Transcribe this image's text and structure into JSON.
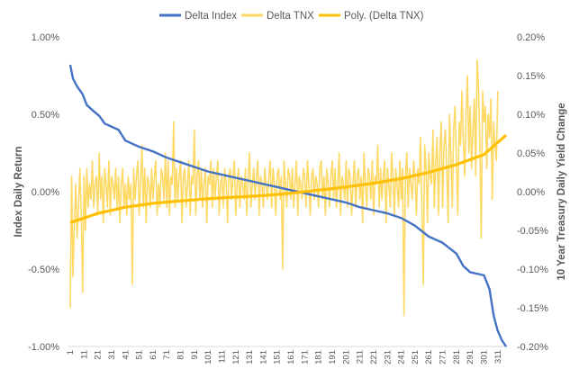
{
  "chart_data": {
    "type": "line",
    "title": "",
    "xlabel": "",
    "ylabel_left": "Index Daily Return",
    "ylabel_right": "10 Year Treasury Daily Yield Change",
    "x_range": [
      1,
      317
    ],
    "x_ticks": [
      1,
      11,
      21,
      31,
      41,
      51,
      61,
      71,
      81,
      91,
      101,
      111,
      121,
      131,
      141,
      151,
      161,
      171,
      181,
      191,
      201,
      211,
      221,
      231,
      241,
      251,
      261,
      271,
      281,
      291,
      301,
      311
    ],
    "y_left_range": [
      -0.01,
      0.01
    ],
    "y_left_ticks": [
      "1.00%",
      "0.50%",
      "0.00%",
      "-0.50%",
      "-1.00%"
    ],
    "y_right_range": [
      -0.002,
      0.002
    ],
    "y_right_ticks": [
      "0.20%",
      "0.15%",
      "0.10%",
      "0.05%",
      "0.00%",
      "-0.05%",
      "-0.10%",
      "-0.15%",
      "-0.20%"
    ],
    "legend_position": "top",
    "series": [
      {
        "name": "Delta Index",
        "axis": "left",
        "color": "#4472C4",
        "points": [
          [
            1,
            0.0082
          ],
          [
            3,
            0.0073
          ],
          [
            6,
            0.0068
          ],
          [
            10,
            0.0063
          ],
          [
            13,
            0.0056
          ],
          [
            18,
            0.0052
          ],
          [
            22,
            0.0049
          ],
          [
            26,
            0.0044
          ],
          [
            31,
            0.0042
          ],
          [
            36,
            0.004
          ],
          [
            41,
            0.0033
          ],
          [
            46,
            0.0031
          ],
          [
            51,
            0.0029
          ],
          [
            61,
            0.0026
          ],
          [
            71,
            0.0022
          ],
          [
            81,
            0.0019
          ],
          [
            91,
            0.0016
          ],
          [
            101,
            0.0013
          ],
          [
            111,
            0.0011
          ],
          [
            121,
            0.0009
          ],
          [
            131,
            0.0007
          ],
          [
            141,
            0.0005
          ],
          [
            151,
            0.0003
          ],
          [
            161,
            0.0001
          ],
          [
            171,
            -0.0001
          ],
          [
            181,
            -0.0003
          ],
          [
            191,
            -0.0005
          ],
          [
            201,
            -0.0007
          ],
          [
            211,
            -0.001
          ],
          [
            221,
            -0.0012
          ],
          [
            231,
            -0.0014
          ],
          [
            241,
            -0.0017
          ],
          [
            251,
            -0.0022
          ],
          [
            261,
            -0.0029
          ],
          [
            271,
            -0.0033
          ],
          [
            281,
            -0.004
          ],
          [
            286,
            -0.0048
          ],
          [
            291,
            -0.0052
          ],
          [
            301,
            -0.0054
          ],
          [
            305,
            -0.0063
          ],
          [
            308,
            -0.008
          ],
          [
            311,
            -0.009
          ],
          [
            314,
            -0.0096
          ],
          [
            317,
            -0.01
          ]
        ]
      },
      {
        "name": "Delta TNX",
        "axis": "right",
        "color": "#FFD966",
        "values": [
          -0.0015,
          0.0002,
          -0.0011,
          -0.0004,
          0.0001,
          -0.0006,
          -0.0002,
          0.0003,
          -0.0003,
          -0.0013,
          0.0002,
          -0.0005,
          0.0003,
          -0.0002,
          0.0001,
          -0.0001,
          0.0004,
          -0.0002,
          0.0001,
          0.0002,
          -0.0003,
          0.0005,
          -0.0001,
          0.0002,
          -0.0004,
          0.0003,
          0.0001,
          -0.0002,
          0.0004,
          -0.0003,
          0.0002,
          0.0001,
          -0.0001,
          0.0003,
          -0.0002,
          0.0002,
          -0.0004,
          0.0001,
          0.0003,
          -0.0002,
          0.0001,
          -0.0003,
          0.0002,
          -0.0001,
          0.0001,
          -0.0012,
          0.0003,
          -0.0001,
          0.0002,
          0.0004,
          -0.0003,
          0.0001,
          0.0006,
          -0.0002,
          0.0003,
          -0.0004,
          0.0002,
          0.0001,
          -0.0002,
          0.0003,
          -0.0001,
          0.0002,
          0.0004,
          -0.0003,
          0.0001,
          -0.0002,
          0.0003,
          0.0002,
          -0.0001,
          0.0005,
          -0.0002,
          0.0004,
          -0.0003,
          0.0002,
          0.0001,
          0.0009,
          -0.0002,
          0.0003,
          -0.0001,
          0.0002,
          0.0004,
          -0.0004,
          0.0002,
          0.0003,
          -0.0002,
          0.0001,
          0.0004,
          -0.0003,
          0.0002,
          0.0001,
          0.0008,
          -0.0003,
          0.0002,
          0.0004,
          -0.0001,
          0.0003,
          -0.0002,
          0.0001,
          0.0003,
          -0.0004,
          0.0002,
          0.0001,
          0.0004,
          -0.0002,
          0.0003,
          -0.0001,
          0.0002,
          0.0004,
          -0.0003,
          0.0001,
          0.0002,
          -0.0002,
          0.0003,
          0.0001,
          -0.0004,
          0.0002,
          0.0003,
          -0.0001,
          0.0002,
          0.0004,
          -0.0003,
          0.0001,
          0.0003,
          -0.0002,
          0.0002,
          0.0001,
          -0.0001,
          0.0003,
          -0.0003,
          0.0002,
          0.0005,
          -0.0002,
          0.0001,
          0.0003,
          -0.0001,
          0.0002,
          0.0004,
          -0.0003,
          0.0002,
          0.0001,
          -0.0002,
          0.0003,
          0.0001,
          -0.0001,
          0.0002,
          0.0004,
          -0.0002,
          0.0003,
          0.0001,
          -0.0003,
          0.0002,
          0.0003,
          -0.0001,
          0.0002,
          -0.001,
          0.0004,
          0.0001,
          -0.0002,
          0.0003,
          0.0002,
          -0.0001,
          0.0003,
          -0.0002,
          0.0001,
          0.0004,
          -0.0003,
          0.0002,
          0.0001,
          -0.0001,
          0.0003,
          0.0002,
          -0.0002,
          0.0004,
          0.0001,
          -0.0003,
          0.0002,
          0.0003,
          -0.0001,
          0.0002,
          0.0001,
          -0.0002,
          0.0003,
          0.0004,
          -0.0001,
          0.0002,
          -0.0003,
          0.0003,
          0.0001,
          -0.0002,
          0.0002,
          0.0004,
          -0.0001,
          0.0003,
          -0.0002,
          0.0001,
          0.0005,
          -0.0003,
          0.0002,
          0.0001,
          -0.0001,
          0.0004,
          -0.0002,
          0.0003,
          0.0002,
          -0.0003,
          0.0001,
          0.0004,
          -0.0002,
          0.0002,
          0.0003,
          -0.0001,
          0.0002,
          -0.0004,
          0.0005,
          0.0001,
          -0.0002,
          0.0003,
          0.0002,
          -0.0001,
          0.0004,
          -0.0003,
          0.0002,
          0.0001,
          0.0006,
          -0.0002,
          0.0003,
          -0.0001,
          0.0002,
          0.0004,
          -0.0004,
          0.0003,
          0.0001,
          -0.0002,
          0.0005,
          0.0002,
          -0.0003,
          0.0003,
          0.0001,
          -0.0002,
          0.0004,
          -0.0001,
          0.0003,
          -0.0016,
          0.0002,
          0.0005,
          -0.0002,
          0.0003,
          0.0001,
          -0.0001,
          0.0004,
          0.0002,
          -0.0003,
          0.0003,
          0.0001,
          0.0007,
          -0.0002,
          -0.0012,
          0.0006,
          0.0003,
          -0.0004,
          0.0005,
          0.0002,
          0.0001,
          0.0008,
          -0.0002,
          0.0004,
          0.0007,
          -0.0003,
          0.0005,
          0.0009,
          -0.0002,
          0.0006,
          0.0008,
          0.0003,
          -0.0004,
          0.001,
          0.0005,
          -0.0002,
          0.0008,
          0.0011,
          0.0004,
          -0.0003,
          0.0009,
          0.0006,
          0.0013,
          0.0007,
          0.0002,
          0.001,
          0.0015,
          0.0005,
          0.0011,
          0.0003,
          0.0008,
          0.0012,
          0.0002,
          0.0017,
          0.0014,
          0.0006,
          -0.0006,
          0.0013,
          0.0009,
          0.0011,
          0.0003,
          0.001,
          0.0007,
          0.0012,
          -0.0001,
          0.0009,
          0.0006,
          0.0004,
          0.0013
        ]
      },
      {
        "name": "Poly. (Delta TNX)",
        "axis": "right",
        "color": "#FFC000",
        "points": [
          [
            1,
            -0.0004
          ],
          [
            21,
            -0.00028
          ],
          [
            41,
            -0.0002
          ],
          [
            61,
            -0.00015
          ],
          [
            81,
            -0.00012
          ],
          [
            101,
            -9e-05
          ],
          [
            121,
            -7e-05
          ],
          [
            141,
            -5e-05
          ],
          [
            161,
            -2e-05
          ],
          [
            181,
            2e-05
          ],
          [
            201,
            6e-05
          ],
          [
            221,
            0.00011
          ],
          [
            241,
            0.00017
          ],
          [
            261,
            0.00025
          ],
          [
            281,
            0.00035
          ],
          [
            301,
            0.00048
          ],
          [
            317,
            0.00073
          ]
        ]
      }
    ]
  }
}
